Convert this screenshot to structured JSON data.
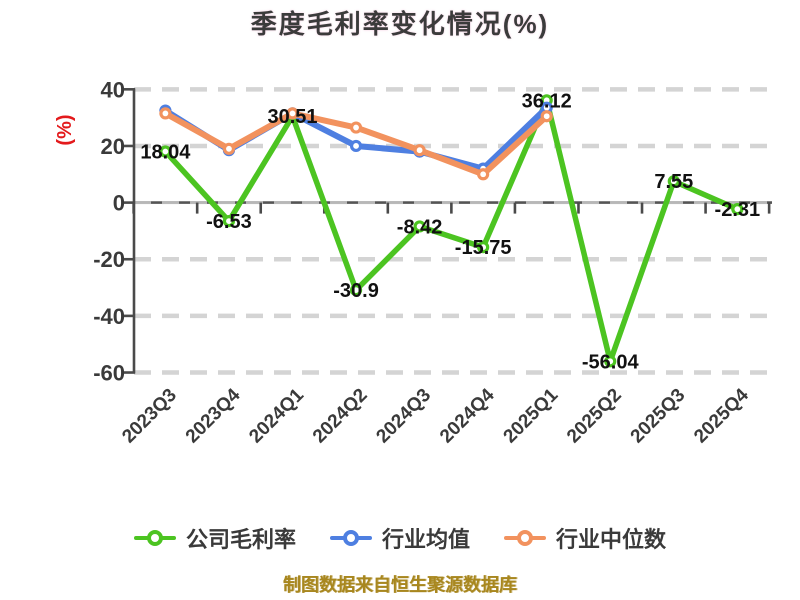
{
  "chart_data": {
    "type": "line",
    "title": "季度毛利率变化情况(%)",
    "y_axis_label": "(%)",
    "y_axis_label_color": "#e31a1c",
    "footer": "制图数据来自恒生聚源数据库",
    "footer_color": "#a8871f",
    "categories": [
      "2023Q3",
      "2023Q4",
      "2024Q1",
      "2024Q2",
      "2024Q3",
      "2024Q4",
      "2025Q1",
      "2025Q2",
      "2025Q3",
      "2025Q4"
    ],
    "series": [
      {
        "id": "company-gross-margin",
        "name": "公司毛利率",
        "color": "#4cc421",
        "show_point_labels": true,
        "values": [
          18.04,
          -6.53,
          30.51,
          -30.9,
          -8.42,
          -15.75,
          36.12,
          -56.04,
          7.55,
          -2.31
        ]
      },
      {
        "id": "industry-mean",
        "name": "行业均值",
        "color": "#4e7fe1",
        "show_point_labels": false,
        "values": [
          32.5,
          18.5,
          31.5,
          20,
          18,
          12,
          33.5,
          null,
          null,
          null
        ]
      },
      {
        "id": "industry-median",
        "name": "行业中位数",
        "color": "#f2925e",
        "show_point_labels": false,
        "values": [
          31.5,
          19,
          31.5,
          26.5,
          18.5,
          10,
          30.5,
          null,
          null,
          null
        ]
      }
    ],
    "ylim": [
      -60,
      40
    ],
    "yticks": [
      40,
      20,
      0,
      -20,
      -40,
      -60
    ],
    "grid": "dashed-horizontal",
    "legend_position": "bottom"
  }
}
